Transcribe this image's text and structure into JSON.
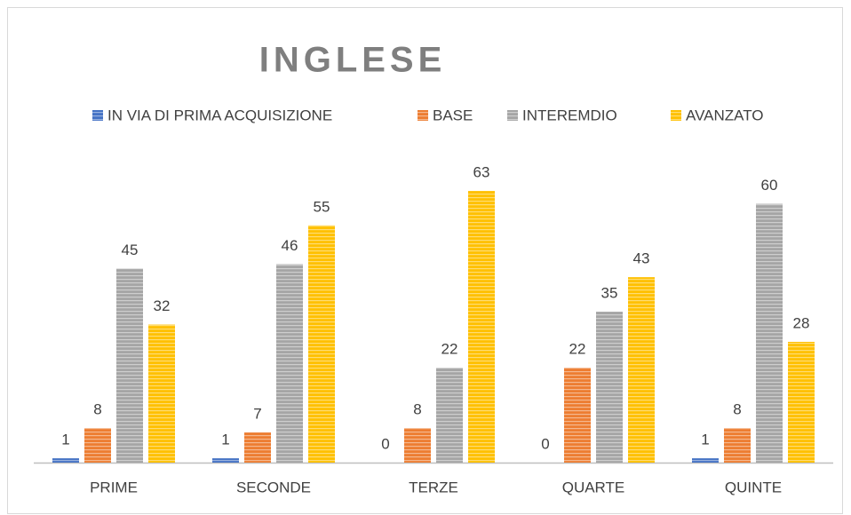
{
  "chart_data": {
    "type": "bar",
    "title": "INGLESE",
    "categories": [
      "PRIME",
      "SECONDE",
      "TERZE",
      "QUARTE",
      "QUINTE"
    ],
    "series": [
      {
        "name": "IN VIA DI PRIMA ACQUISIZIONE",
        "color": "#4472c4",
        "values": [
          1,
          1,
          0,
          0,
          1
        ]
      },
      {
        "name": "BASE",
        "color": "#ed7d31",
        "values": [
          8,
          7,
          8,
          22,
          8
        ]
      },
      {
        "name": "INTEREMDIO",
        "color": "#a5a5a5",
        "values": [
          45,
          46,
          22,
          35,
          60
        ]
      },
      {
        "name": "AVANZATO",
        "color": "#ffc000",
        "values": [
          32,
          55,
          63,
          43,
          28
        ]
      }
    ],
    "legend": "top"
  }
}
